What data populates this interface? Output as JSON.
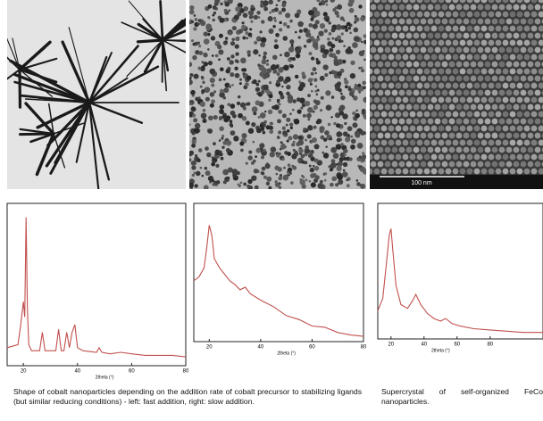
{
  "figure": {
    "scale_bar": "100 nm",
    "plots": [
      {
        "type": "line",
        "x_label": "2theta (°)",
        "xlim": [
          14,
          80
        ],
        "xticks": [
          20,
          40,
          60,
          80
        ],
        "ylim": [
          0,
          100
        ],
        "color": "#c0504d",
        "x": [
          14,
          18,
          19,
          20,
          20.5,
          21,
          21.5,
          22,
          23,
          26,
          27,
          28,
          30,
          32,
          33,
          34,
          35,
          36,
          37,
          38,
          39,
          40,
          42,
          47,
          48,
          49,
          52,
          56,
          60,
          65,
          70,
          75,
          80
        ],
        "values": [
          10,
          12,
          25,
          40,
          30,
          95,
          35,
          12,
          8,
          8,
          20,
          8,
          8,
          8,
          22,
          8,
          8,
          20,
          10,
          20,
          25,
          10,
          8,
          7,
          10,
          7,
          6,
          7,
          6,
          5,
          5,
          5,
          4
        ]
      },
      {
        "type": "line",
        "x_label": "2theta (°)",
        "xlim": [
          14,
          80
        ],
        "xticks": [
          20,
          40,
          60,
          80
        ],
        "ylim": [
          0,
          100
        ],
        "color": "#c0504d",
        "x": [
          14,
          16,
          18,
          19,
          20,
          21,
          22,
          24,
          26,
          28,
          30,
          32,
          34,
          36,
          40,
          45,
          50,
          55,
          60,
          65,
          70,
          75,
          80
        ],
        "values": [
          45,
          48,
          55,
          70,
          88,
          80,
          62,
          55,
          50,
          45,
          42,
          38,
          40,
          35,
          30,
          25,
          18,
          15,
          10,
          9,
          5,
          3,
          2
        ]
      },
      {
        "type": "line",
        "x_label": "2theta (°)",
        "xlim": [
          12,
          112
        ],
        "xticks": [
          20,
          40,
          60,
          80
        ],
        "ylim": [
          0,
          100
        ],
        "color": "#c0504d",
        "x": [
          12,
          15,
          17,
          19,
          20,
          21,
          23,
          26,
          30,
          33,
          35,
          38,
          42,
          46,
          50,
          53,
          57,
          62,
          70,
          80,
          90,
          100,
          112
        ],
        "values": [
          20,
          30,
          55,
          80,
          85,
          70,
          40,
          25,
          22,
          28,
          33,
          25,
          18,
          14,
          12,
          14,
          10,
          8,
          6,
          5,
          4,
          3,
          3
        ]
      }
    ],
    "captions": [
      "Shape of cobalt nanoparticles depending on the addition rate of cobalt precursor to stabilizing ligands (but similar reducing conditions) - left: fast addition, right: slow addition.",
      "Supercrystal of self-organized FeCo nanoparticles."
    ]
  }
}
